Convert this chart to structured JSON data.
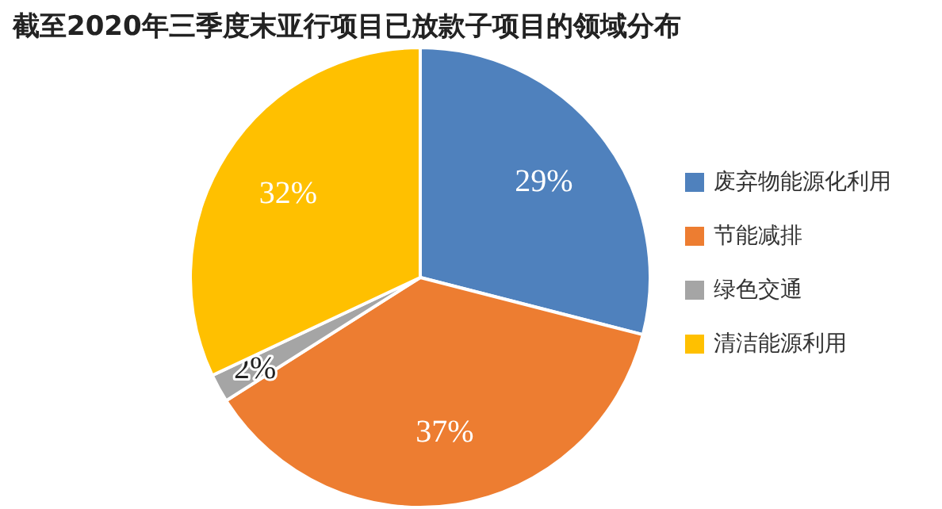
{
  "chart_data": {
    "type": "pie",
    "title": "截至2020年三季度末亚行项目已放款子项目的领域分布",
    "categories": [
      "废弃物能源化利用",
      "节能减排",
      "绿色交通",
      "清洁能源利用"
    ],
    "values": [
      29,
      37,
      2,
      32
    ],
    "colors": [
      "#4f81bd",
      "#ed7d31",
      "#a5a5a5",
      "#ffc000"
    ],
    "value_labels": [
      "29%",
      "37%",
      "2%",
      "32%"
    ],
    "legend": "right"
  }
}
